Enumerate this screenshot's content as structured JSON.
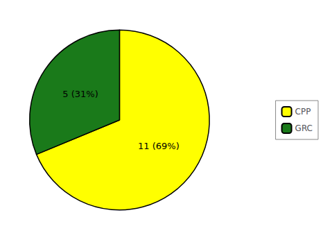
{
  "chart_data": {
    "type": "pie",
    "categories": [
      "CPP",
      "GRC"
    ],
    "values": [
      11,
      5
    ],
    "value_labels": [
      "11 (69%)",
      "5 (31%)"
    ],
    "colors": [
      "#FFFF00",
      "#1A7A1A"
    ],
    "data_labels": true,
    "legend": "right"
  }
}
